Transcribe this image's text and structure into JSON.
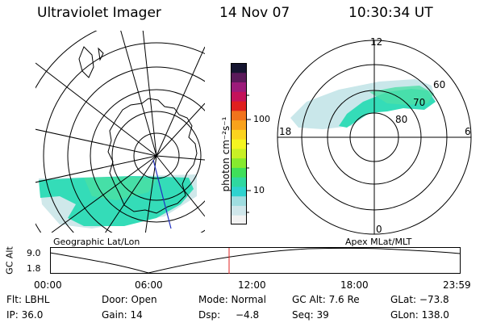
{
  "header": {
    "instrument": "Ultraviolet Imager",
    "date": "14 Nov 07",
    "time": "10:30:34 UT"
  },
  "geo_map": {
    "label": "Geographic Lat/Lon"
  },
  "polar_plot": {
    "label": "Apex MLat/MLT",
    "mlt_labels": [
      "12",
      "6",
      "0",
      "18"
    ],
    "mlat_labels": [
      "60",
      "70",
      "80"
    ]
  },
  "colorbar": {
    "unit_label": "photon cm⁻²s⁻¹",
    "tick_labels": [
      "100",
      "10"
    ],
    "scale": "log",
    "colors": [
      "#f2f2f2",
      "#cfe6ea",
      "#9fdde0",
      "#2ed3cf",
      "#2fd8a0",
      "#3fdf5a",
      "#86ea2e",
      "#c8f025",
      "#f5f520",
      "#fbd31f",
      "#f9a21c",
      "#f0731c",
      "#df1f1f",
      "#c4125a",
      "#9c1b7a",
      "#5a1a5a",
      "#151530"
    ]
  },
  "timeline": {
    "ylabel": "GC Alt",
    "y_ticks": [
      "9.0",
      "1.8"
    ],
    "x_ticks": [
      "00:00",
      "06:00",
      "12:00",
      "18:00",
      "23:59"
    ],
    "current_time_marker": "10:30",
    "marker_color": "#e02020"
  },
  "status": {
    "row1": {
      "flt": "Flt: LBHL",
      "door": "Door: Open",
      "mode": "Mode: Normal",
      "gc_alt": "GC Alt: 7.6 Re",
      "glat": "GLat: −73.8"
    },
    "row2": {
      "ip": "IP: 36.0",
      "gain": "Gain: 14",
      "dsp": "Dsp:",
      "dsp_value": "−4.8",
      "seq": "Seq: 39",
      "glon": "GLon: 138.0"
    }
  },
  "colors": {
    "emission_main": "#2fe0b8",
    "emission_faint": "#c4e6e8",
    "emission_track": "#4dd8a8"
  }
}
